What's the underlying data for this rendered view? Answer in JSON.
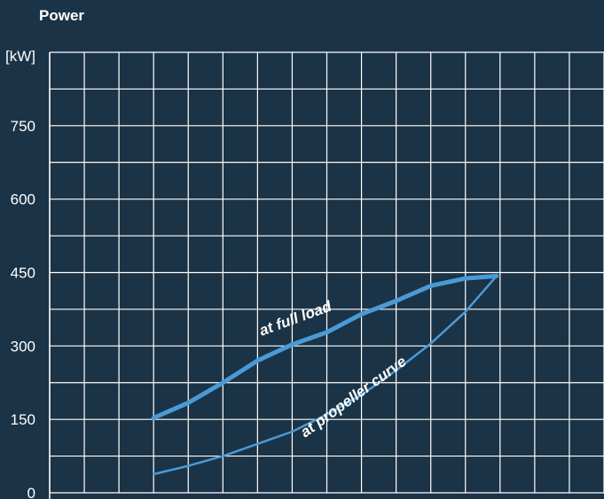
{
  "chart_data": {
    "type": "line",
    "title": "Power",
    "ylabel": "[kW]",
    "y_ticks": [
      "750",
      "600",
      "450",
      "300",
      "150",
      "0"
    ],
    "ylim": [
      0,
      900
    ],
    "xlim": [
      0,
      16
    ],
    "grid": true,
    "background_color": "#1b3346",
    "line_color": "#4a9ad6",
    "grid_color": "#ffffff",
    "series": [
      {
        "name": "at full load",
        "x": [
          3,
          4,
          5,
          6,
          7,
          8,
          9,
          10,
          11,
          12,
          12.9
        ],
        "y": [
          153,
          184,
          225,
          270,
          303,
          328,
          365,
          392,
          423,
          438,
          443
        ]
      },
      {
        "name": "at propeller curve",
        "x": [
          3,
          4,
          5,
          6,
          7,
          8,
          9,
          10,
          11,
          12,
          12.9
        ],
        "y": [
          38,
          55,
          75,
          100,
          125,
          160,
          200,
          250,
          305,
          370,
          443
        ]
      }
    ],
    "annotations": [
      "at full load",
      "at propeller curve"
    ]
  }
}
